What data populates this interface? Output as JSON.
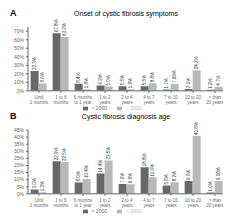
{
  "chart_data": [
    {
      "type": "bar",
      "title": "Onset of cystic fibrosis symptoms",
      "annotation": "A",
      "categories": [
        "Until\n1 months",
        "1 to 6\nmonths",
        "6 months\nto 1 year",
        "1 to 2\nyears",
        "2 to 4\nyears",
        "4 to 7\nyears",
        "7 to 10\nyears",
        "10 to 20\nyears",
        "> than\n20 years"
      ],
      "series": [
        {
          "name": "< 2000",
          "color": "#686868",
          "values": [
            23.3,
            67.8,
            8.4,
            6.2,
            5.5,
            5.5,
            1.7,
            2.1,
            1.2
          ],
          "value_labels": [
            "23.3%",
            "67.8%",
            "8.4%",
            "6.2%",
            "5.5%",
            "5.5%",
            "1.7%",
            "2.1%",
            "1.2%"
          ]
        },
        {
          "name": "> 2000",
          "color": "#b8b8b8",
          "values": [
            8.6,
            63.2,
            1.8,
            5.0,
            1.8,
            8.8,
            7.99,
            24.2,
            4.7
          ],
          "value_labels": [
            "8.6%",
            "63.2%",
            "1.8%",
            "5.0%",
            "1.8%",
            "8.8%",
            "7.99%",
            "24.2%",
            "4.7%"
          ]
        }
      ],
      "ylim": [
        0,
        75
      ],
      "yticks": [
        {
          "value": 0,
          "label": "0%"
        },
        {
          "value": 10,
          "label": "10%"
        },
        {
          "value": 20,
          "label": "20%"
        },
        {
          "value": 30,
          "label": "30%"
        },
        {
          "value": 40,
          "label": "40%"
        },
        {
          "value": 50,
          "label": "50%"
        },
        {
          "value": 60,
          "label": "60%"
        },
        {
          "value": 70,
          "label": "70%"
        }
      ],
      "data_labels": true,
      "grid": false,
      "legend": "bottom"
    },
    {
      "type": "bar",
      "title": "Cystic fibrosis diagnosis age",
      "annotation": "B",
      "categories": [
        "Until\n1 months",
        "1 to 6\nmonths",
        "6 months\nto 1 year",
        "1 to 2\nyears",
        "2 to 4\nyears",
        "4 to 7\nyears",
        "7 to 10\nyears",
        "10 to 20\nyears",
        "> than\n20 years"
      ],
      "series": [
        {
          "name": "< 2000",
          "color": "#686868",
          "values": [
            3.0,
            22.9,
            8.0,
            14.4,
            7.0,
            18.8,
            5.8,
            9.0,
            1.0
          ],
          "value_labels": [
            "3.0%",
            "22.9%",
            "8.0%",
            "14.4%",
            "7.0%",
            "18.8%",
            "5.8%",
            "9.0%",
            "1.0%"
          ]
        },
        {
          "name": "> 2000",
          "color": "#b8b8b8",
          "values": [
            1.2,
            22.5,
            10.4,
            23.5,
            6.8,
            11.6,
            8.2,
            40.8,
            9.08
          ],
          "value_labels": [
            "1.2%",
            "22.5%",
            "10.4%",
            "23.5%",
            "6.8%",
            "11.6%",
            "8.2%",
            "40.8%",
            "9.08%"
          ]
        }
      ],
      "ylim": [
        0,
        45
      ],
      "yticks": [
        {
          "value": 0,
          "label": "0%"
        },
        {
          "value": 5,
          "label": "5%"
        },
        {
          "value": 10,
          "label": "10%"
        },
        {
          "value": 15,
          "label": "15%"
        },
        {
          "value": 20,
          "label": "20%"
        },
        {
          "value": 25,
          "label": "25%"
        },
        {
          "value": 30,
          "label": "30%"
        },
        {
          "value": 35,
          "label": "35%"
        },
        {
          "value": 40,
          "label": "40%"
        },
        {
          "value": 45,
          "label": "45%"
        }
      ],
      "data_labels": true,
      "grid": false,
      "legend": "bottom"
    }
  ]
}
